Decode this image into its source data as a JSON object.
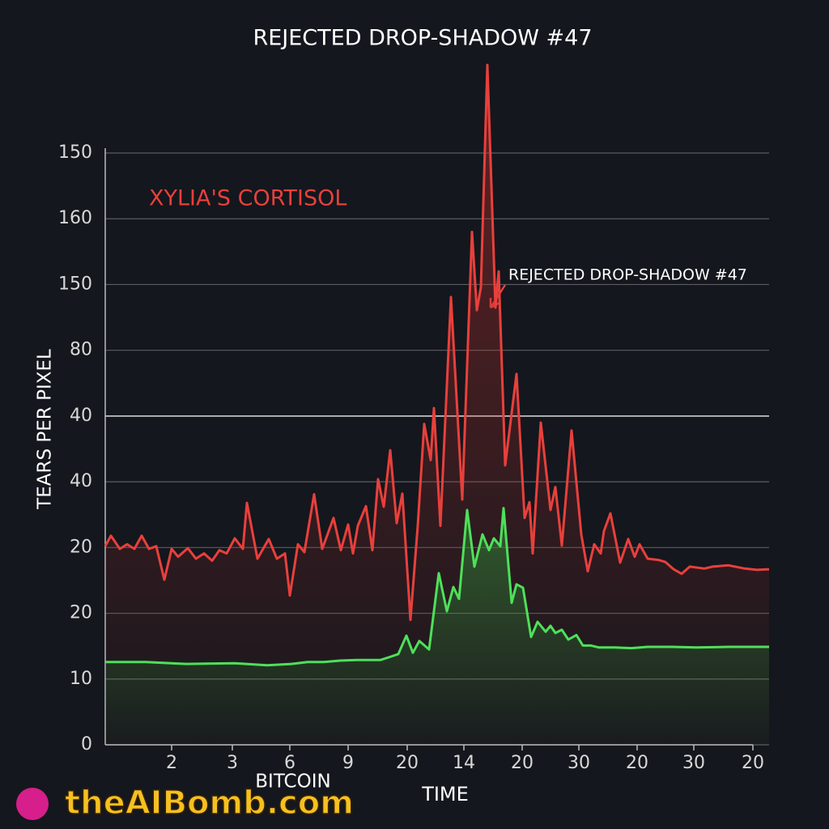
{
  "chart_data": {
    "type": "line",
    "title": "REJECTED DROP-SHADOW #47",
    "y_label": "TEARS PER PIXEL",
    "x_label": "TIME",
    "x_sublabel": "BITCOIN",
    "annotation": "REJECTED DROP-SHADOW #47",
    "watermark": "theAIBomb.com",
    "grid": true,
    "xlim": [
      0,
      820
    ],
    "ylim": [
      0,
      90
    ],
    "xticks": [
      {
        "value": 82,
        "label": "2"
      },
      {
        "value": 157,
        "label": "3"
      },
      {
        "value": 228,
        "label": "6"
      },
      {
        "value": 300,
        "label": "9"
      },
      {
        "value": 373,
        "label": "20"
      },
      {
        "value": 443,
        "label": "14"
      },
      {
        "value": 515,
        "label": "20"
      },
      {
        "value": 585,
        "label": "30"
      },
      {
        "value": 657,
        "label": "20"
      },
      {
        "value": 727,
        "label": "30"
      },
      {
        "value": 800,
        "label": "20"
      }
    ],
    "yticks": [
      0,
      10,
      20,
      {
        "value": 30,
        "label": "20"
      },
      40,
      {
        "value": 50,
        "label": "40"
      },
      {
        "value": 60,
        "label": "80"
      },
      {
        "value": 70,
        "label": "150"
      },
      {
        "value": 80,
        "label": "160"
      },
      {
        "value": 90,
        "label": "150"
      }
    ],
    "series": [
      {
        "name": "XYLIA'S CORTISOL",
        "color": "#e8403c",
        "x": [
          0,
          7,
          18,
          27,
          36,
          45,
          54,
          63,
          73,
          82,
          90,
          102,
          112,
          122,
          132,
          141,
          150,
          160,
          170,
          175,
          188,
          202,
          212,
          222,
          228,
          238,
          246,
          258,
          268,
          282,
          291,
          300,
          306,
          312,
          322,
          330,
          337,
          344,
          352,
          360,
          367,
          377,
          386,
          394,
          402,
          406,
          414,
          427,
          441,
          453,
          459,
          464,
          472,
          476,
          482,
          486,
          494,
          508,
          518,
          524,
          528,
          538,
          550,
          556,
          564,
          576,
          588,
          596,
          604,
          612,
          616,
          624,
          636,
          646,
          654,
          660,
          670,
          684,
          692,
          702,
          712,
          722,
          740,
          750,
          770,
          790,
          805,
          820
        ],
        "values": [
          30.2,
          31.8,
          29.8,
          30.5,
          29.8,
          31.8,
          29.8,
          30.2,
          25.1,
          29.8,
          28.6,
          29.9,
          28.3,
          29.1,
          28.0,
          29.6,
          29.1,
          31.4,
          29.8,
          36.8,
          28.3,
          31.3,
          28.3,
          29.1,
          22.7,
          30.5,
          29.3,
          38.1,
          29.8,
          34.5,
          29.6,
          33.5,
          29.1,
          33.3,
          36.3,
          29.6,
          40.4,
          36.2,
          44.8,
          33.7,
          38.2,
          19.0,
          33.3,
          48.8,
          43.3,
          51.2,
          33.3,
          68.1,
          37.3,
          78.0,
          66.1,
          69.6,
          103.4,
          88.7,
          66.5,
          72.0,
          42.5,
          56.4,
          34.5,
          36.9,
          29.1,
          49.0,
          35.7,
          39.2,
          30.3,
          47.8,
          32.0,
          26.4,
          30.5,
          29.1,
          32.5,
          35.2,
          27.7,
          31.3,
          28.6,
          30.5,
          28.3,
          28.1,
          27.8,
          26.7,
          26.0,
          27.1,
          26.8,
          27.1,
          27.3,
          26.8,
          26.6,
          26.7
        ]
      },
      {
        "color": "#4ee05a",
        "x": [
          0,
          50,
          100,
          160,
          200,
          230,
          250,
          270,
          290,
          310,
          340,
          350,
          362,
          372,
          380,
          388,
          400,
          412,
          422,
          430,
          437,
          447,
          456,
          466,
          474,
          480,
          488,
          492,
          502,
          508,
          516,
          526,
          534,
          544,
          550,
          556,
          564,
          572,
          582,
          590,
          600,
          610,
          630,
          650,
          670,
          700,
          730,
          770,
          820
        ],
        "values": [
          12.6,
          12.6,
          12.3,
          12.4,
          12.1,
          12.3,
          12.6,
          12.6,
          12.8,
          12.9,
          12.9,
          13.3,
          13.8,
          16.6,
          14.0,
          15.8,
          14.5,
          26.1,
          20.3,
          24.0,
          22.2,
          35.7,
          27.1,
          32.0,
          29.6,
          31.4,
          30.2,
          36.0,
          21.6,
          24.4,
          23.9,
          16.4,
          18.7,
          17.2,
          18.1,
          17.0,
          17.5,
          16.0,
          16.7,
          15.1,
          15.1,
          14.8,
          14.8,
          14.7,
          14.9,
          14.9,
          14.8,
          14.9,
          14.9
        ]
      }
    ]
  }
}
